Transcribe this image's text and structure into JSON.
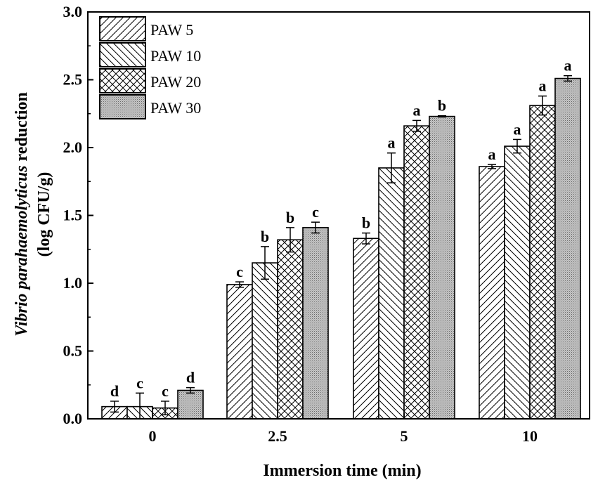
{
  "chart_data": {
    "type": "bar",
    "title": "",
    "xlabel": "Immersion time (min)",
    "ylabel_italic": "Vibrio parahaemolyticus",
    "ylabel_rest": " reduction",
    "ylabel_line2": "(log CFU/g)",
    "categories": [
      "0",
      "2.5",
      "5",
      "10"
    ],
    "ylim": [
      0,
      3.0
    ],
    "yticks": [
      "0.0",
      "0.5",
      "1.0",
      "1.5",
      "2.0",
      "2.5",
      "3.0"
    ],
    "ytick_values": [
      0,
      0.5,
      1.0,
      1.5,
      2.0,
      2.5,
      3.0
    ],
    "legend_position": "top-left",
    "series": [
      {
        "name": "PAW 5",
        "pattern": "diag-forward",
        "values": [
          0.09,
          0.99,
          1.33,
          1.86
        ],
        "errors": [
          0.04,
          0.02,
          0.04,
          0.015
        ],
        "labels": [
          "d",
          "c",
          "b",
          "a"
        ]
      },
      {
        "name": "PAW 10",
        "pattern": "diag-back",
        "values": [
          0.09,
          1.15,
          1.85,
          2.01
        ],
        "errors": [
          0.1,
          0.12,
          0.11,
          0.05
        ],
        "labels": [
          "c",
          "b",
          "a",
          "a"
        ]
      },
      {
        "name": "PAW 20",
        "pattern": "crosshatch",
        "values": [
          0.08,
          1.32,
          2.16,
          2.31
        ],
        "errors": [
          0.05,
          0.09,
          0.04,
          0.07
        ],
        "labels": [
          "c",
          "b",
          "a",
          "a"
        ]
      },
      {
        "name": "PAW 30",
        "pattern": "dots",
        "values": [
          0.21,
          1.41,
          2.23,
          2.51
        ],
        "errors": [
          0.02,
          0.04,
          0.005,
          0.02
        ],
        "labels": [
          "d",
          "c",
          "b",
          "a"
        ]
      }
    ]
  }
}
